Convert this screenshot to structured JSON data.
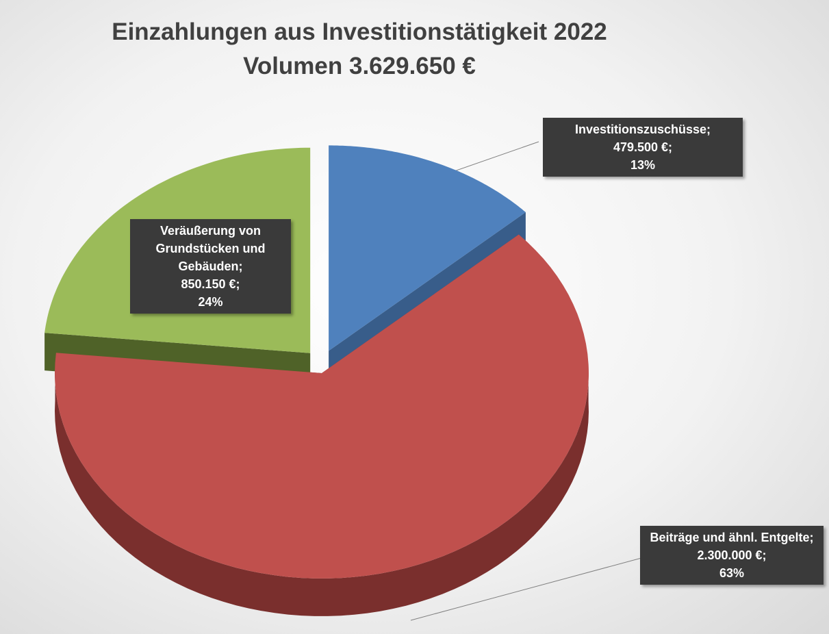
{
  "chart_data": {
    "type": "pie",
    "title": [
      "Einzahlungen aus Investitionstätigkeit  2022",
      "Volumen 3.629.650 €"
    ],
    "categories": [
      "Investitionszuschüsse",
      "Beiträge und ähnl. Entgelte",
      "Veräußerung von Grundstücken und Gebäuden"
    ],
    "values": [
      479500,
      2300000,
      850150
    ],
    "value_labels": [
      "479.500 €",
      "2.300.000 €",
      "850.150 €"
    ],
    "percents": [
      13,
      63,
      24
    ],
    "percent_labels": [
      "13%",
      "63%",
      "24%"
    ],
    "label_separator": ";",
    "colors": [
      "#4f81bd",
      "#c0504d",
      "#9bbb59"
    ],
    "side_colors": [
      "#385d8a",
      "#7a2f2d",
      "#4f6228"
    ]
  }
}
